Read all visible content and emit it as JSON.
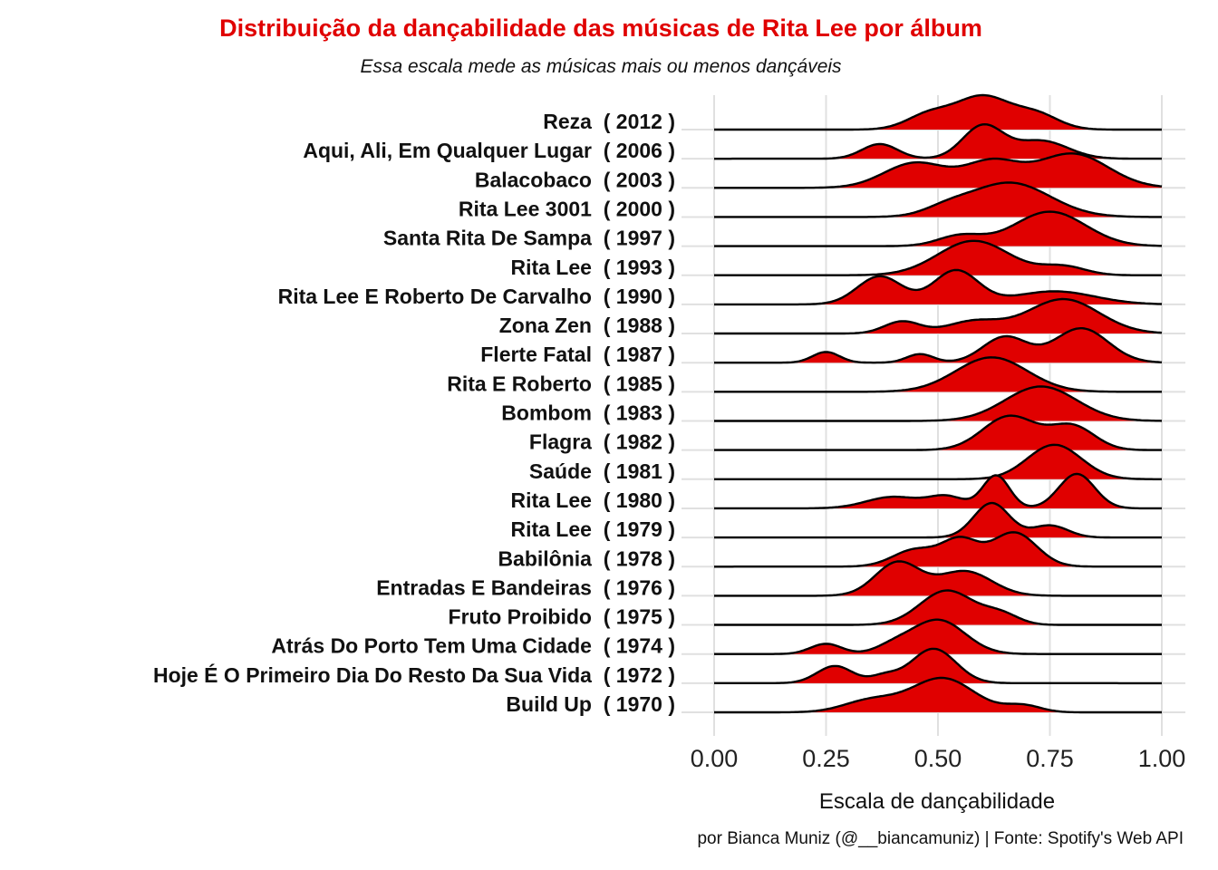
{
  "title": "Distribuição da dançabilidade das músicas de Rita Lee por álbum",
  "subtitle": "Essa escala mede as músicas mais ou menos dançáveis",
  "caption": "por Bianca Muniz (@__biancamuniz) | Fonte: Spotify's Web API",
  "colors": {
    "fill": "#e00000",
    "title": "#e00000",
    "line": "#000000",
    "grid": "#e0e0e0"
  },
  "chart_data": {
    "type": "ridgeline",
    "xlabel": "Escala de dançabilidade",
    "xlim": [
      0,
      1
    ],
    "xticks": [
      "0.00",
      "0.25",
      "0.50",
      "0.75",
      "1.00"
    ],
    "grid": true,
    "albums": [
      {
        "label": "Reza  ( 2012 )",
        "peaks": [
          [
            0.6,
            0.06,
            1.0
          ],
          [
            0.48,
            0.05,
            0.45
          ],
          [
            0.72,
            0.05,
            0.45
          ]
        ]
      },
      {
        "label": "Aqui, Ali, Em Qualquer Lugar  ( 2006 )",
        "peaks": [
          [
            0.6,
            0.045,
            1.0
          ],
          [
            0.37,
            0.04,
            0.45
          ],
          [
            0.73,
            0.06,
            0.55
          ]
        ]
      },
      {
        "label": "Balacobaco  ( 2003 )",
        "peaks": [
          [
            0.45,
            0.07,
            0.55
          ],
          [
            0.62,
            0.06,
            0.55
          ],
          [
            0.8,
            0.08,
            0.75
          ]
        ]
      },
      {
        "label": "Rita Lee 3001  ( 2000 )",
        "peaks": [
          [
            0.66,
            0.09,
            1.0
          ],
          [
            0.52,
            0.05,
            0.2
          ]
        ]
      },
      {
        "label": "Santa Rita De Sampa  ( 1997 )",
        "peaks": [
          [
            0.75,
            0.08,
            1.0
          ],
          [
            0.55,
            0.05,
            0.3
          ]
        ]
      },
      {
        "label": "Rita Lee  ( 1993 )",
        "peaks": [
          [
            0.58,
            0.08,
            1.0
          ],
          [
            0.78,
            0.05,
            0.25
          ]
        ]
      },
      {
        "label": "Rita Lee E Roberto De Carvalho  ( 1990 )",
        "peaks": [
          [
            0.37,
            0.05,
            0.75
          ],
          [
            0.54,
            0.05,
            0.9
          ],
          [
            0.76,
            0.09,
            0.35
          ]
        ]
      },
      {
        "label": "Zona Zen  ( 1988 )",
        "peaks": [
          [
            0.42,
            0.04,
            0.35
          ],
          [
            0.78,
            0.08,
            1.0
          ],
          [
            0.58,
            0.06,
            0.35
          ]
        ]
      },
      {
        "label": "Flerte Fatal  ( 1987 )",
        "peaks": [
          [
            0.25,
            0.03,
            0.25
          ],
          [
            0.46,
            0.03,
            0.2
          ],
          [
            0.65,
            0.05,
            0.6
          ],
          [
            0.82,
            0.06,
            0.8
          ]
        ]
      },
      {
        "label": "Rita E Roberto  ( 1985 )",
        "peaks": [
          [
            0.62,
            0.08,
            1.0
          ]
        ]
      },
      {
        "label": "Bombom  ( 1983 )",
        "peaks": [
          [
            0.73,
            0.08,
            1.0
          ]
        ]
      },
      {
        "label": "Flagra  ( 1982 )",
        "peaks": [
          [
            0.66,
            0.06,
            1.0
          ],
          [
            0.8,
            0.05,
            0.7
          ]
        ]
      },
      {
        "label": "Saúde  ( 1981 )",
        "peaks": [
          [
            0.76,
            0.06,
            1.0
          ]
        ]
      },
      {
        "label": "Rita Lee  ( 1980 )",
        "peaks": [
          [
            0.4,
            0.06,
            0.35
          ],
          [
            0.52,
            0.04,
            0.35
          ],
          [
            0.63,
            0.03,
            1.0
          ],
          [
            0.81,
            0.04,
            1.05
          ]
        ]
      },
      {
        "label": "Rita Lee  ( 1979 )",
        "peaks": [
          [
            0.62,
            0.04,
            1.0
          ],
          [
            0.75,
            0.04,
            0.35
          ]
        ]
      },
      {
        "label": "Babilônia  ( 1978 )",
        "peaks": [
          [
            0.45,
            0.05,
            0.4
          ],
          [
            0.55,
            0.04,
            0.6
          ],
          [
            0.67,
            0.05,
            0.8
          ]
        ]
      },
      {
        "label": "Entradas E Bandeiras  ( 1976 )",
        "peaks": [
          [
            0.41,
            0.05,
            0.95
          ],
          [
            0.56,
            0.06,
            0.7
          ]
        ]
      },
      {
        "label": "Fruto Proibido  ( 1975 )",
        "peaks": [
          [
            0.52,
            0.06,
            1.0
          ],
          [
            0.64,
            0.04,
            0.3
          ]
        ]
      },
      {
        "label": "Atrás Do Porto Tem Uma Cidade  ( 1974 )",
        "peaks": [
          [
            0.25,
            0.035,
            0.3
          ],
          [
            0.5,
            0.06,
            1.0
          ],
          [
            0.4,
            0.04,
            0.2
          ]
        ]
      },
      {
        "label": "Hoje É O Primeiro Dia Do Resto Da Sua Vida  ( 1972 )",
        "peaks": [
          [
            0.27,
            0.04,
            0.5
          ],
          [
            0.49,
            0.05,
            1.0
          ],
          [
            0.38,
            0.03,
            0.2
          ]
        ]
      },
      {
        "label": "Build Up  ( 1970 )",
        "peaks": [
          [
            0.51,
            0.07,
            1.0
          ],
          [
            0.35,
            0.06,
            0.35
          ],
          [
            0.69,
            0.04,
            0.2
          ]
        ]
      }
    ]
  }
}
